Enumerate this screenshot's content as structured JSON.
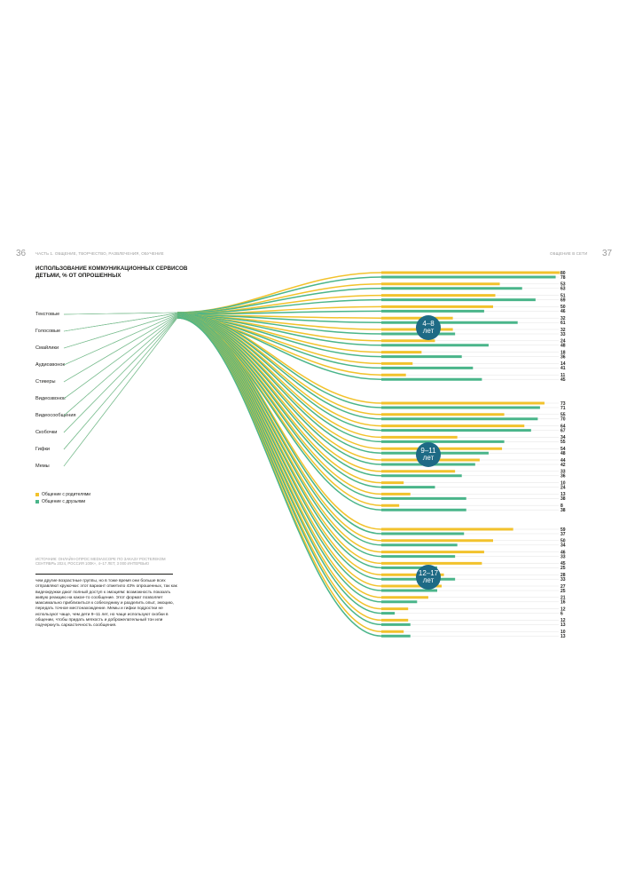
{
  "header": {
    "page_left": "36",
    "page_right": "37",
    "running_left": "ЧАСТЬ 1. ОБЩЕНИЕ, ТВОРЧЕСТВО, РАЗВЛЕЧЕНИЯ, ОБУЧЕНИЕ",
    "running_right": "ОБЩЕНИЕ В СЕТИ"
  },
  "chart_data": {
    "type": "bar",
    "title": "ИСПОЛЬЗОВАНИЕ КОММУНИКАЦИОННЫХ СЕРВИСОВ ДЕТЬМИ, % ОТ ОПРОШЕННЫХ",
    "categories": [
      "Текстовые",
      "Голосовые",
      "Смайлики",
      "Аудиозвонок",
      "Стикеры",
      "Видеозвонок",
      "Видеосообщения",
      "Скобочки",
      "Гифки",
      "Мемы"
    ],
    "series_names": [
      "Общение с родителями",
      "Общение с друзьями"
    ],
    "colors": {
      "parents": "#f2c22c",
      "friends": "#4ab58a",
      "badge": "#1e6a85"
    },
    "groups": [
      {
        "label": "4–8 лет",
        "parents": [
          80,
          53,
          51,
          50,
          32,
          32,
          24,
          18,
          14,
          11
        ],
        "friends": [
          78,
          63,
          69,
          46,
          61,
          33,
          48,
          36,
          41,
          45
        ]
      },
      {
        "label": "9–11 лет",
        "parents": [
          73,
          55,
          64,
          34,
          54,
          44,
          33,
          10,
          13,
          8
        ],
        "friends": [
          71,
          70,
          67,
          55,
          48,
          42,
          36,
          24,
          38,
          38
        ]
      },
      {
        "label": "12–17 лет",
        "parents": [
          59,
          50,
          46,
          45,
          28,
          27,
          21,
          12,
          12,
          10
        ],
        "friends": [
          37,
          34,
          33,
          25,
          33,
          25,
          16,
          6,
          13,
          13
        ]
      }
    ]
  },
  "legend": {
    "parents": "Общение с родителями",
    "friends": "Общение с друзьями"
  },
  "source": "ИСТОЧНИК: ОНЛАЙН-ОПРОС MEDIASCOPE ПО ЗАКАЗУ РОСТЕЛЕКОМ СЕНТЯБРЬ 2024, РОССИЯ 100К+, 4–17 ЛЕТ, 3 000 ИНТЕРВЬЮ",
  "body_text": "чем другие возрастные группы, но в тоже время они больше всех отправляют кружочки: этот вариант отметило 43% опрошенных, так как видеокружки дают полный доступ к эмоциям: возможность показать живую реакцию на какое-то сообщение. Этот формат позволяет максимально приблизиться к собеседнику и разделить опыт, эмоцию, передать точное местонахождение. Мемы и гифки подростки не используют чаще, чем дети 9–11 лет, но чаще используют скобки в общении, чтобы придать мягкость и доброжелательный тон или подчеркнуть саркастичность сообщения."
}
